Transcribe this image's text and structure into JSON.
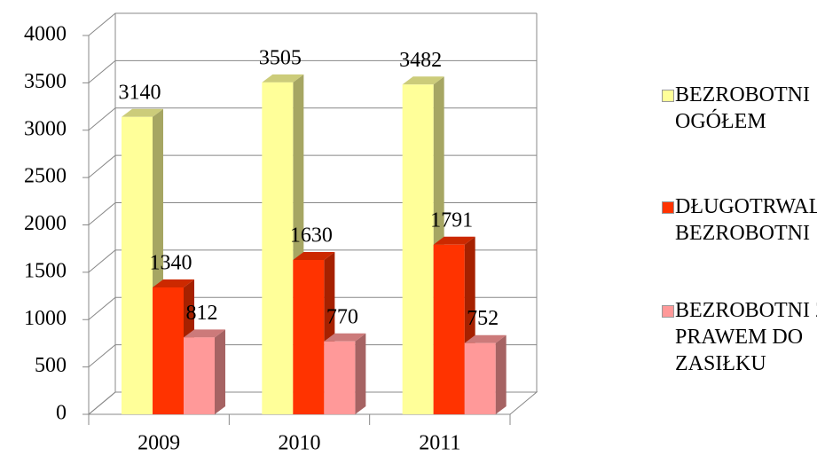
{
  "chart_data": {
    "type": "bar3d",
    "categories": [
      "2009",
      "2010",
      "2011"
    ],
    "series": [
      {
        "name": "BEZROBOTNI OGÓŁEM",
        "color": "#ffff99",
        "values": [
          3140,
          3505,
          3482
        ]
      },
      {
        "name": "DŁUGOTRWALE BEZROBOTNI",
        "color": "#ff3300",
        "values": [
          1340,
          1630,
          1791
        ]
      },
      {
        "name": "BEZROBOTNI Z PRAWEM DO ZASIŁKU",
        "color": "#ff9999",
        "values": [
          812,
          770,
          752
        ]
      }
    ],
    "ylim": [
      0,
      4000
    ],
    "yticks": [
      0,
      500,
      1000,
      1500,
      2000,
      2500,
      3000,
      3500,
      4000
    ],
    "grid": true,
    "legend": "right"
  }
}
